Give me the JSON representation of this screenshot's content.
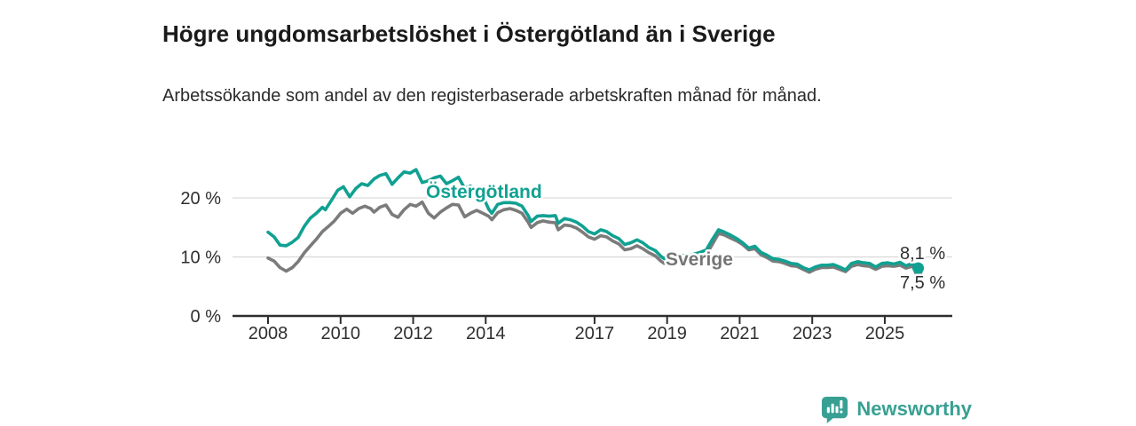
{
  "header": {
    "title": "Högre ungdomsarbetslöshet i Östergötland än i Sverige",
    "subtitle": "Arbetssökande som andel av den registerbaserade arbetskraften månad för månad."
  },
  "chart_data": {
    "type": "line",
    "title": "Högre ungdomsarbetslöshet i Östergötland än i Sverige",
    "xlabel": "",
    "ylabel": "Arbetssökande som andel av den registerbaserade arbetskraften",
    "x_unit": "decimal_year_monthly",
    "ylim": [
      0,
      26
    ],
    "xlim": [
      2007.0,
      2026.9
    ],
    "grid": "horizontal",
    "legend_position": "inline-labels",
    "yticks": [
      {
        "value": 0,
        "label": "0 %"
      },
      {
        "value": 10,
        "label": "10 %"
      },
      {
        "value": 20,
        "label": "20 %"
      }
    ],
    "xticks": [
      {
        "value": 2008,
        "label": "2008"
      },
      {
        "value": 2010,
        "label": "2010"
      },
      {
        "value": 2012,
        "label": "2012"
      },
      {
        "value": 2014,
        "label": "2014"
      },
      {
        "value": 2017,
        "label": "2017"
      },
      {
        "value": 2019,
        "label": "2019"
      },
      {
        "value": 2021,
        "label": "2021"
      },
      {
        "value": 2023,
        "label": "2023"
      },
      {
        "value": 2025,
        "label": "2025"
      }
    ],
    "series": [
      {
        "name": "Sverige",
        "color": "#7b7b7b",
        "end_label": "7,5 %",
        "end_value": 7.5,
        "points": [
          [
            2008.0,
            9.8
          ],
          [
            2008.17,
            9.3
          ],
          [
            2008.33,
            8.2
          ],
          [
            2008.5,
            7.6
          ],
          [
            2008.67,
            8.2
          ],
          [
            2008.83,
            9.2
          ],
          [
            2009.0,
            10.7
          ],
          [
            2009.17,
            11.9
          ],
          [
            2009.33,
            13.0
          ],
          [
            2009.5,
            14.3
          ],
          [
            2009.67,
            15.2
          ],
          [
            2009.83,
            16.1
          ],
          [
            2010.0,
            17.4
          ],
          [
            2010.17,
            18.1
          ],
          [
            2010.33,
            17.4
          ],
          [
            2010.5,
            18.2
          ],
          [
            2010.67,
            18.6
          ],
          [
            2010.83,
            18.2
          ],
          [
            2010.92,
            17.6
          ],
          [
            2011.08,
            18.4
          ],
          [
            2011.25,
            18.8
          ],
          [
            2011.42,
            17.2
          ],
          [
            2011.58,
            16.7
          ],
          [
            2011.75,
            18.0
          ],
          [
            2011.92,
            18.9
          ],
          [
            2012.08,
            18.6
          ],
          [
            2012.25,
            19.3
          ],
          [
            2012.42,
            17.4
          ],
          [
            2012.58,
            16.6
          ],
          [
            2012.75,
            17.6
          ],
          [
            2012.92,
            18.3
          ],
          [
            2013.08,
            18.9
          ],
          [
            2013.25,
            18.8
          ],
          [
            2013.42,
            16.8
          ],
          [
            2013.58,
            17.4
          ],
          [
            2013.75,
            17.9
          ],
          [
            2013.92,
            17.4
          ],
          [
            2014.08,
            16.9
          ],
          [
            2014.17,
            16.3
          ],
          [
            2014.33,
            17.5
          ],
          [
            2014.5,
            18.0
          ],
          [
            2014.67,
            18.2
          ],
          [
            2014.83,
            17.9
          ],
          [
            2015.0,
            17.4
          ],
          [
            2015.17,
            15.9
          ],
          [
            2015.25,
            15.0
          ],
          [
            2015.42,
            15.8
          ],
          [
            2015.58,
            16.1
          ],
          [
            2015.75,
            15.9
          ],
          [
            2015.92,
            15.8
          ],
          [
            2016.0,
            14.6
          ],
          [
            2016.17,
            15.4
          ],
          [
            2016.33,
            15.3
          ],
          [
            2016.5,
            14.9
          ],
          [
            2016.67,
            14.2
          ],
          [
            2016.83,
            13.4
          ],
          [
            2017.0,
            13.0
          ],
          [
            2017.17,
            13.6
          ],
          [
            2017.33,
            13.4
          ],
          [
            2017.5,
            12.7
          ],
          [
            2017.67,
            12.2
          ],
          [
            2017.83,
            11.2
          ],
          [
            2018.0,
            11.4
          ],
          [
            2018.17,
            11.9
          ],
          [
            2018.33,
            11.4
          ],
          [
            2018.5,
            10.7
          ],
          [
            2018.67,
            10.2
          ],
          [
            2018.83,
            9.3
          ],
          [
            2018.92,
            8.9
          ],
          [
            2019.08,
            9.8
          ],
          [
            2019.25,
            9.5
          ],
          [
            2019.42,
            8.9
          ],
          [
            2019.58,
            9.3
          ],
          [
            2019.75,
            9.5
          ],
          [
            2019.92,
            9.9
          ],
          [
            2020.08,
            10.4
          ],
          [
            2020.25,
            12.2
          ],
          [
            2020.42,
            14.0
          ],
          [
            2020.58,
            13.7
          ],
          [
            2020.75,
            13.2
          ],
          [
            2020.92,
            12.7
          ],
          [
            2021.08,
            12.1
          ],
          [
            2021.25,
            11.2
          ],
          [
            2021.42,
            11.4
          ],
          [
            2021.58,
            10.4
          ],
          [
            2021.75,
            9.9
          ],
          [
            2021.92,
            9.3
          ],
          [
            2022.08,
            9.2
          ],
          [
            2022.25,
            8.9
          ],
          [
            2022.42,
            8.5
          ],
          [
            2022.58,
            8.4
          ],
          [
            2022.75,
            7.9
          ],
          [
            2022.92,
            7.4
          ],
          [
            2023.08,
            7.9
          ],
          [
            2023.25,
            8.2
          ],
          [
            2023.42,
            8.2
          ],
          [
            2023.58,
            8.3
          ],
          [
            2023.75,
            7.9
          ],
          [
            2023.92,
            7.5
          ],
          [
            2024.08,
            8.4
          ],
          [
            2024.25,
            8.7
          ],
          [
            2024.42,
            8.5
          ],
          [
            2024.58,
            8.4
          ],
          [
            2024.75,
            7.9
          ],
          [
            2024.92,
            8.4
          ],
          [
            2025.08,
            8.5
          ],
          [
            2025.25,
            8.4
          ],
          [
            2025.42,
            8.6
          ],
          [
            2025.58,
            8.1
          ],
          [
            2025.75,
            8.4
          ],
          [
            2025.92,
            7.5
          ]
        ]
      },
      {
        "name": "Östergötland",
        "color": "#10a192",
        "end_label": "8,1 %",
        "end_value": 8.1,
        "points": [
          [
            2008.0,
            14.2
          ],
          [
            2008.17,
            13.4
          ],
          [
            2008.33,
            12.0
          ],
          [
            2008.5,
            11.9
          ],
          [
            2008.67,
            12.5
          ],
          [
            2008.83,
            13.3
          ],
          [
            2009.0,
            15.2
          ],
          [
            2009.17,
            16.6
          ],
          [
            2009.33,
            17.4
          ],
          [
            2009.5,
            18.4
          ],
          [
            2009.58,
            18.0
          ],
          [
            2009.75,
            19.6
          ],
          [
            2009.92,
            21.3
          ],
          [
            2010.08,
            21.9
          ],
          [
            2010.25,
            20.2
          ],
          [
            2010.42,
            21.6
          ],
          [
            2010.58,
            22.4
          ],
          [
            2010.75,
            22.1
          ],
          [
            2010.92,
            23.2
          ],
          [
            2011.08,
            23.8
          ],
          [
            2011.25,
            24.1
          ],
          [
            2011.42,
            22.3
          ],
          [
            2011.58,
            23.4
          ],
          [
            2011.75,
            24.4
          ],
          [
            2011.92,
            24.2
          ],
          [
            2012.08,
            24.8
          ],
          [
            2012.25,
            22.6
          ],
          [
            2012.42,
            22.9
          ],
          [
            2012.58,
            23.4
          ],
          [
            2012.75,
            23.7
          ],
          [
            2012.92,
            22.4
          ],
          [
            2013.08,
            22.9
          ],
          [
            2013.25,
            23.5
          ],
          [
            2013.42,
            21.6
          ],
          [
            2013.58,
            22.0
          ],
          [
            2013.75,
            21.0
          ],
          [
            2013.92,
            20.3
          ],
          [
            2014.08,
            18.1
          ],
          [
            2014.17,
            17.4
          ],
          [
            2014.33,
            18.9
          ],
          [
            2014.5,
            19.2
          ],
          [
            2014.67,
            19.2
          ],
          [
            2014.83,
            19.1
          ],
          [
            2015.0,
            18.6
          ],
          [
            2015.17,
            17.0
          ],
          [
            2015.25,
            16.0
          ],
          [
            2015.42,
            16.9
          ],
          [
            2015.58,
            17.0
          ],
          [
            2015.75,
            16.9
          ],
          [
            2015.92,
            17.0
          ],
          [
            2016.0,
            15.7
          ],
          [
            2016.17,
            16.5
          ],
          [
            2016.33,
            16.3
          ],
          [
            2016.5,
            15.9
          ],
          [
            2016.67,
            15.2
          ],
          [
            2016.83,
            14.3
          ],
          [
            2017.0,
            13.9
          ],
          [
            2017.17,
            14.6
          ],
          [
            2017.33,
            14.3
          ],
          [
            2017.5,
            13.6
          ],
          [
            2017.67,
            13.1
          ],
          [
            2017.83,
            12.1
          ],
          [
            2018.0,
            12.4
          ],
          [
            2018.17,
            12.9
          ],
          [
            2018.33,
            12.4
          ],
          [
            2018.5,
            11.6
          ],
          [
            2018.67,
            11.1
          ],
          [
            2018.83,
            10.1
          ],
          [
            2018.92,
            9.7
          ],
          [
            2019.08,
            10.7
          ],
          [
            2019.25,
            10.4
          ],
          [
            2019.42,
            10.3
          ],
          [
            2019.58,
            10.2
          ],
          [
            2019.75,
            10.5
          ],
          [
            2019.92,
            10.8
          ],
          [
            2020.08,
            11.2
          ],
          [
            2020.25,
            13.0
          ],
          [
            2020.42,
            14.6
          ],
          [
            2020.58,
            14.2
          ],
          [
            2020.75,
            13.7
          ],
          [
            2020.92,
            13.1
          ],
          [
            2021.08,
            12.4
          ],
          [
            2021.25,
            11.5
          ],
          [
            2021.42,
            11.8
          ],
          [
            2021.58,
            10.8
          ],
          [
            2021.75,
            10.3
          ],
          [
            2021.92,
            9.7
          ],
          [
            2022.08,
            9.6
          ],
          [
            2022.25,
            9.3
          ],
          [
            2022.42,
            8.9
          ],
          [
            2022.58,
            8.8
          ],
          [
            2022.75,
            8.2
          ],
          [
            2022.92,
            7.8
          ],
          [
            2023.08,
            8.3
          ],
          [
            2023.25,
            8.6
          ],
          [
            2023.42,
            8.6
          ],
          [
            2023.58,
            8.7
          ],
          [
            2023.75,
            8.3
          ],
          [
            2023.92,
            7.8
          ],
          [
            2024.08,
            8.9
          ],
          [
            2024.25,
            9.2
          ],
          [
            2024.42,
            9.0
          ],
          [
            2024.58,
            8.9
          ],
          [
            2024.75,
            8.3
          ],
          [
            2024.92,
            8.9
          ],
          [
            2025.08,
            9.0
          ],
          [
            2025.25,
            8.8
          ],
          [
            2025.42,
            9.1
          ],
          [
            2025.58,
            8.5
          ],
          [
            2025.75,
            8.9
          ],
          [
            2025.92,
            8.1
          ]
        ]
      }
    ]
  },
  "footer": {
    "brand": "Newsworthy",
    "logo_icon": "bar-chart-speech-bubble"
  }
}
